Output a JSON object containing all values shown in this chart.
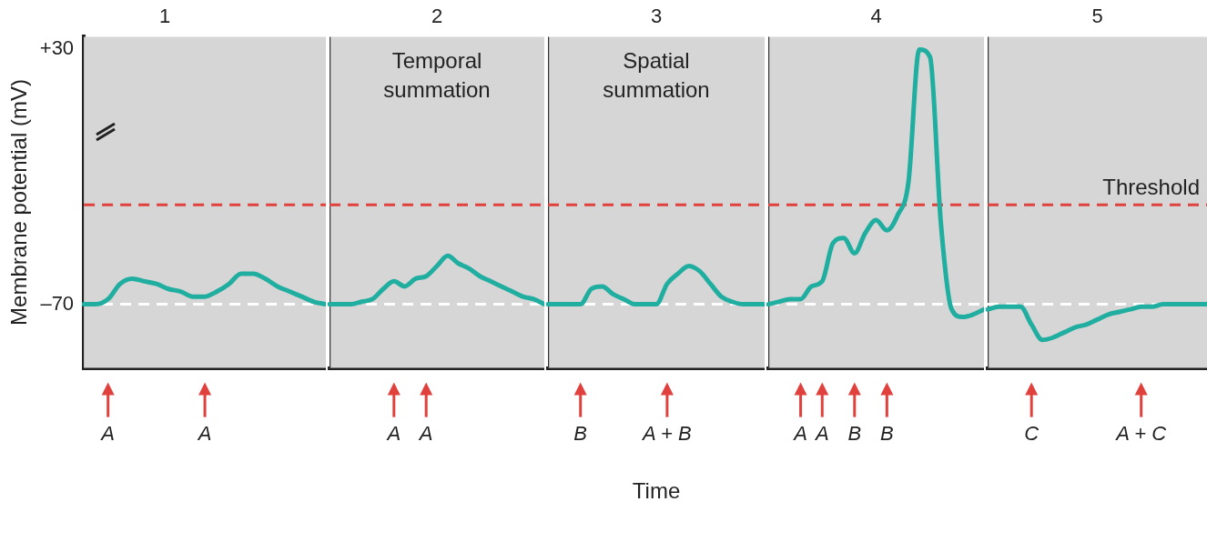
{
  "chart_data": [
    {
      "type": "line",
      "title": "1",
      "ylabel": "Membrane potential (mV)",
      "categories": [
        null,
        null,
        "A",
        null,
        null,
        null,
        null,
        null,
        null,
        null,
        "A",
        null,
        null,
        null,
        null,
        null,
        null,
        null,
        null,
        null,
        null
      ],
      "series": [
        {
          "color": "#1fae9f",
          "values": [
            -70,
            -70,
            -68,
            -62,
            -60,
            -61,
            -62,
            -64,
            -65,
            -67,
            -67,
            -65,
            -62,
            -58,
            -58,
            -60,
            -63,
            -65,
            -67,
            -69,
            -70
          ]
        }
      ],
      "ylim": [
        -95,
        35
      ],
      "yticks": [
        {
          "value": 30,
          "label": "+30"
        },
        {
          "value": -70,
          "label": "–70"
        }
      ],
      "grid": false,
      "legend": false,
      "marker": "none",
      "line_style": "solid",
      "ref_lines": [
        {
          "axis": "y",
          "value": -31,
          "color": "#e0413c",
          "line_style": "dashed"
        },
        {
          "axis": "y",
          "value": -70,
          "color": "#ffffff",
          "line_style": "dashed"
        }
      ]
    },
    {
      "type": "line",
      "title": "2",
      "categories": [
        null,
        null,
        null,
        null,
        null,
        null,
        "A",
        null,
        null,
        "A",
        null,
        null,
        null,
        null,
        null,
        null,
        null,
        null,
        null,
        null,
        null
      ],
      "series": [
        {
          "color": "#1fae9f",
          "values": [
            -70,
            -70,
            -70,
            -69,
            -68,
            -64,
            -61,
            -63,
            -60,
            -59,
            -55,
            -51,
            -54,
            -56,
            -59,
            -61,
            -63,
            -65,
            -67,
            -68,
            -70
          ]
        }
      ],
      "ylim": [
        -95,
        35
      ],
      "tick_labels": "x",
      "grid": false,
      "legend": false,
      "marker": "none",
      "line_style": "solid",
      "ref_lines": [
        {
          "axis": "y",
          "value": -31,
          "color": "#e0413c",
          "line_style": "dashed"
        },
        {
          "axis": "y",
          "value": -70,
          "color": "#ffffff",
          "line_style": "dashed"
        }
      ],
      "annotations": [
        "Temporal summation"
      ]
    },
    {
      "type": "line",
      "title": "3",
      "xlabel": "Time",
      "categories": [
        null,
        null,
        null,
        "B",
        null,
        null,
        null,
        null,
        null,
        null,
        null,
        "A + B",
        null,
        null,
        null,
        null,
        null,
        null,
        null,
        null,
        null
      ],
      "series": [
        {
          "color": "#1fae9f",
          "values": [
            -70,
            -70,
            -70,
            -70,
            -64,
            -63,
            -66,
            -68,
            -70,
            -70,
            -70,
            -62,
            -58,
            -55,
            -57,
            -62,
            -67,
            -69,
            -70,
            -70,
            -70
          ]
        }
      ],
      "ylim": [
        -95,
        35
      ],
      "tick_labels": "x",
      "grid": false,
      "legend": false,
      "marker": "none",
      "line_style": "solid",
      "ref_lines": [
        {
          "axis": "y",
          "value": -31,
          "color": "#e0413c",
          "line_style": "dashed"
        },
        {
          "axis": "y",
          "value": -70,
          "color": "#ffffff",
          "line_style": "dashed"
        }
      ],
      "annotations": [
        "Spatial summation"
      ]
    },
    {
      "type": "line",
      "title": "4",
      "categories": [
        null,
        null,
        null,
        "A",
        null,
        "A",
        null,
        null,
        "B",
        null,
        null,
        "B",
        null,
        null,
        null,
        null,
        null,
        null,
        null,
        null,
        null
      ],
      "series": [
        {
          "color": "#1fae9f",
          "values": [
            -70,
            -69,
            -68,
            -68,
            -63,
            -61,
            -46,
            -44,
            -50,
            -42,
            -37,
            -41,
            -35,
            -22,
            30,
            27,
            -38,
            -72,
            -75,
            -74,
            -72
          ]
        }
      ],
      "ylim": [
        -95,
        35
      ],
      "tick_labels": "x",
      "grid": false,
      "legend": false,
      "marker": "none",
      "line_style": "solid",
      "ref_lines": [
        {
          "axis": "y",
          "value": -31,
          "color": "#e0413c",
          "line_style": "dashed"
        },
        {
          "axis": "y",
          "value": -70,
          "color": "#ffffff",
          "line_style": "dashed"
        }
      ]
    },
    {
      "type": "line",
      "title": "5",
      "categories": [
        null,
        null,
        null,
        null,
        "C",
        null,
        null,
        null,
        null,
        null,
        null,
        null,
        null,
        null,
        "A + C",
        null,
        null,
        null,
        null,
        null,
        null
      ],
      "series": [
        {
          "color": "#1fae9f",
          "values": [
            -72,
            -71,
            -71,
            -71,
            -78,
            -84,
            -83,
            -81,
            -79,
            -78,
            -76,
            -74,
            -73,
            -72,
            -71,
            -71,
            -70,
            -70,
            -70,
            -70,
            -70
          ]
        }
      ],
      "ylim": [
        -95,
        35
      ],
      "tick_labels": "x",
      "grid": false,
      "legend": false,
      "marker": "none",
      "line_style": "solid",
      "ref_lines": [
        {
          "axis": "y",
          "value": -31,
          "label": "Threshold",
          "color": "#e0413c",
          "line_style": "dashed"
        },
        {
          "axis": "y",
          "value": -70,
          "color": "#ffffff",
          "line_style": "dashed"
        }
      ]
    }
  ]
}
